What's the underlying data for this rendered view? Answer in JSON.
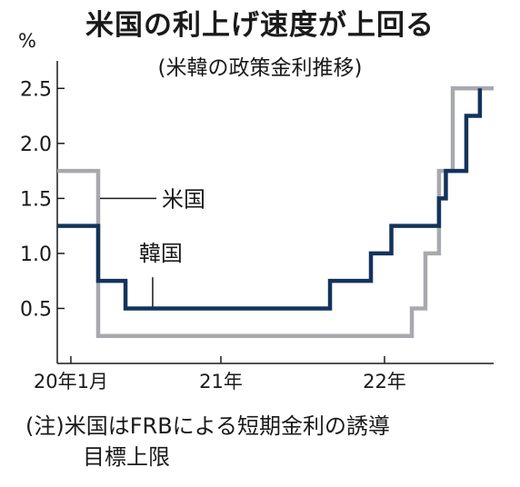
{
  "chart_data": {
    "type": "line",
    "title": "米国の利上げ速度が上回る",
    "subtitle": "(米韓の政策金利推移)",
    "ylabel": "%",
    "ylim": [
      0,
      2.75
    ],
    "yticks": [
      0.5,
      1.0,
      1.5,
      2.0,
      2.5
    ],
    "ytick_labels": [
      "0.5",
      "1.0",
      "1.5",
      "2.0",
      "2.5"
    ],
    "xlim": [
      2020.0,
      2022.667
    ],
    "xticks": [
      2020.083,
      2021.0,
      2022.0
    ],
    "xtick_labels": [
      "20年1月",
      "21年",
      "22年"
    ],
    "step": true,
    "grid": false,
    "series": [
      {
        "name": "米国",
        "color": "#a7a9ae",
        "x": [
          2020.0,
          2020.25,
          2022.167,
          2022.25,
          2022.333,
          2022.417,
          2022.5,
          2022.667
        ],
        "y": [
          1.75,
          0.25,
          0.5,
          1.0,
          1.75,
          2.5,
          2.5,
          2.5
        ]
      },
      {
        "name": "韓国",
        "color": "#14335c",
        "x": [
          2020.0,
          2020.25,
          2020.417,
          2021.667,
          2021.917,
          2022.042,
          2022.333,
          2022.375,
          2022.5,
          2022.583
        ],
        "y": [
          1.25,
          0.75,
          0.5,
          0.75,
          1.0,
          1.25,
          1.5,
          1.75,
          2.25,
          2.5
        ]
      }
    ],
    "annotations": [
      "米国",
      "韓国"
    ],
    "note_line1": "(注)米国はFRBによる短期金利の誘導",
    "note_line2": "目標上限"
  }
}
